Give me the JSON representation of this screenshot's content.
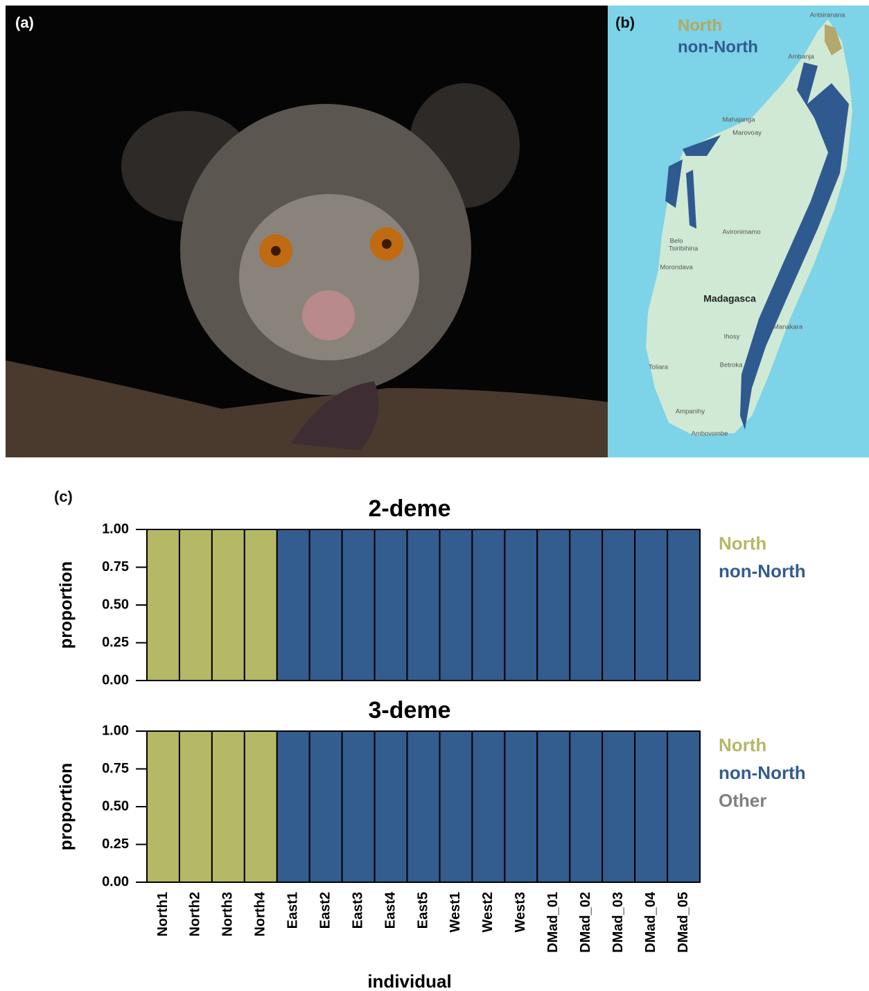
{
  "panels": {
    "a": "(a)",
    "b": "(b)",
    "c": "(c)"
  },
  "map": {
    "legend": [
      "North",
      "non-North"
    ],
    "places": [
      "Antsiranana",
      "Ambanja",
      "Mahajanga",
      "Marovoay",
      "Avironimamo",
      "Belo",
      "Tsiribihina",
      "Morondava",
      "Madagasca",
      "Manakara",
      "Ihosy",
      "Toliara",
      "Betroka",
      "Ampanihy",
      "Ambovombe"
    ]
  },
  "chart_data": [
    {
      "type": "stacked_bar",
      "title": "2-deme",
      "y_label": "proportion",
      "categories": [
        null,
        null,
        null,
        null,
        null,
        null,
        null,
        null,
        null,
        null,
        null,
        null,
        null,
        null,
        null,
        null,
        null
      ],
      "series": [
        {
          "name": "North",
          "color": "#b5b865",
          "values": [
            1,
            1,
            1,
            1,
            0,
            0,
            0,
            0,
            0,
            0,
            0,
            0,
            0,
            0,
            0,
            0,
            0
          ]
        },
        {
          "name": "non-North",
          "color": "#335c8f",
          "values": [
            0,
            0,
            0,
            0,
            1,
            1,
            1,
            1,
            1,
            1,
            1,
            1,
            1,
            1,
            1,
            1,
            1
          ]
        }
      ],
      "ylim": [
        0,
        1
      ],
      "yticks": [
        {
          "value": 0,
          "label": "0.00"
        },
        {
          "value": 0.25,
          "label": "0.25"
        },
        {
          "value": 0.5,
          "label": "0.50"
        },
        {
          "value": 0.75,
          "label": "0.75"
        },
        {
          "value": 1,
          "label": "1.00"
        }
      ]
    },
    {
      "type": "stacked_bar",
      "title": "3-deme",
      "y_label": "proportion",
      "x_label": "individual",
      "categories": [
        "North1",
        "North2",
        "North3",
        "North4",
        "East1",
        "East2",
        "East3",
        "East4",
        "East5",
        "West1",
        "West2",
        "West3",
        "DMad_01",
        "DMad_02",
        "DMad_03",
        "DMad_04",
        "DMad_05"
      ],
      "series": [
        {
          "name": "North",
          "color": "#b5b865",
          "values": [
            1,
            1,
            1,
            1,
            0,
            0,
            0,
            0,
            0,
            0,
            0,
            0,
            0,
            0,
            0,
            0,
            0
          ]
        },
        {
          "name": "non-North",
          "color": "#335c8f",
          "values": [
            0,
            0,
            0,
            0,
            1,
            1,
            1,
            1,
            1,
            1,
            1,
            1,
            1,
            1,
            1,
            1,
            1
          ]
        },
        {
          "name": "Other",
          "color": "#808080",
          "values": [
            0,
            0,
            0,
            0,
            0,
            0,
            0,
            0,
            0,
            0,
            0,
            0,
            0,
            0,
            0,
            0,
            0
          ]
        }
      ],
      "ylim": [
        0,
        1
      ],
      "yticks": [
        {
          "value": 0,
          "label": "0.00"
        },
        {
          "value": 0.25,
          "label": "0.25"
        },
        {
          "value": 0.5,
          "label": "0.50"
        },
        {
          "value": 0.75,
          "label": "0.75"
        },
        {
          "value": 1,
          "label": "1.00"
        }
      ]
    }
  ]
}
